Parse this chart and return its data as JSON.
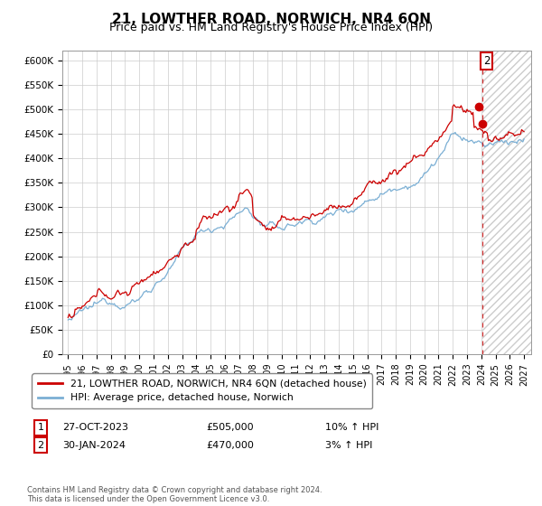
{
  "title": "21, LOWTHER ROAD, NORWICH, NR4 6QN",
  "subtitle": "Price paid vs. HM Land Registry's House Price Index (HPI)",
  "ylim": [
    0,
    620000
  ],
  "yticks": [
    0,
    50000,
    100000,
    150000,
    200000,
    250000,
    300000,
    350000,
    400000,
    450000,
    500000,
    550000,
    600000
  ],
  "hpi_color": "#7bafd4",
  "price_color": "#cc0000",
  "transaction1_label": "1",
  "transaction2_label": "2",
  "transaction1_date": "27-OCT-2023",
  "transaction1_price": "£505,000",
  "transaction1_hpi": "10% ↑ HPI",
  "transaction2_date": "30-JAN-2024",
  "transaction2_price": "£470,000",
  "transaction2_hpi": "3% ↑ HPI",
  "legend_label1": "21, LOWTHER ROAD, NORWICH, NR4 6QN (detached house)",
  "legend_label2": "HPI: Average price, detached house, Norwich",
  "footer": "Contains HM Land Registry data © Crown copyright and database right 2024.\nThis data is licensed under the Open Government Licence v3.0.",
  "bg_color": "#ffffff",
  "grid_color": "#cccccc",
  "title_fontsize": 11,
  "subtitle_fontsize": 9,
  "t2_x": 2024.083,
  "t1_x": 2023.833,
  "t1_y": 505000,
  "t2_y": 470000,
  "xlim_left": 1994.6,
  "xlim_right": 2027.5
}
